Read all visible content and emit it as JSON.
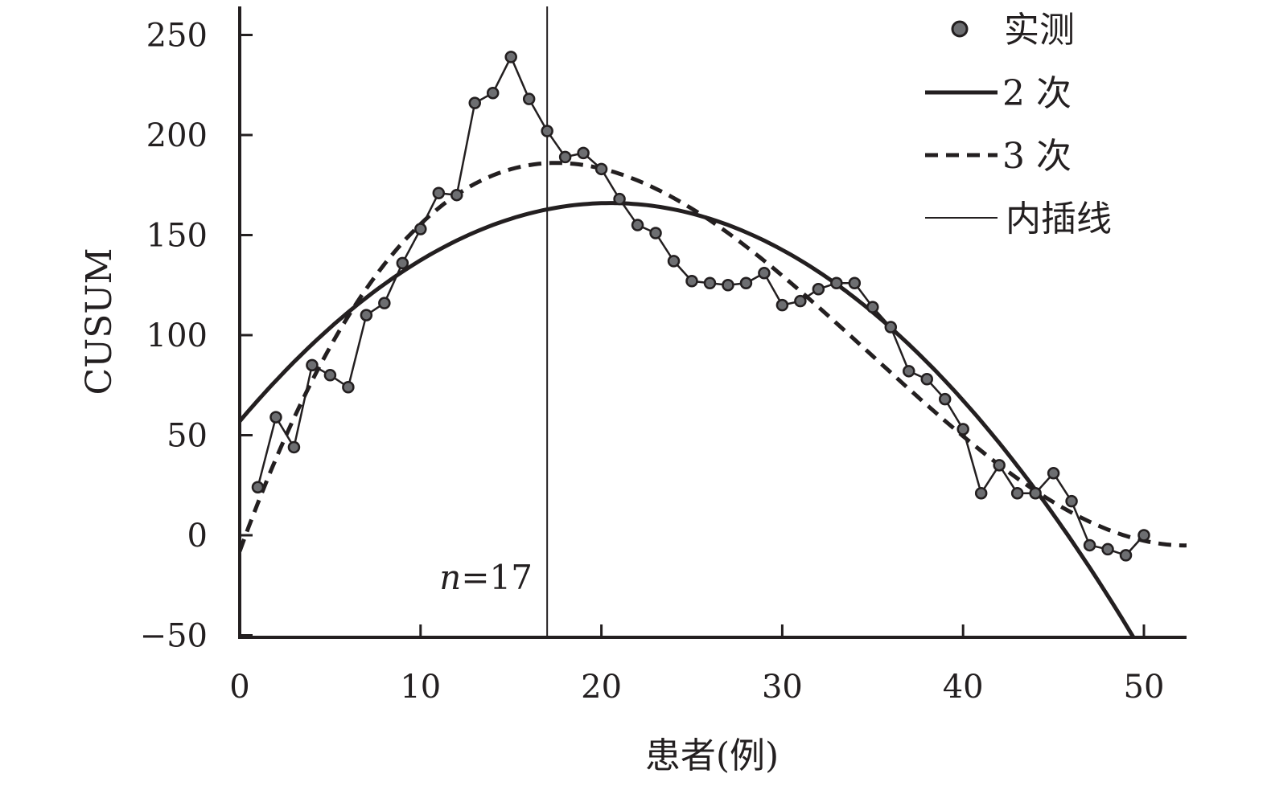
{
  "chart_data": {
    "type": "line",
    "title": "",
    "xlabel": "患者(例)",
    "ylabel": "CUSUM",
    "xlim": [
      0,
      52.5
    ],
    "ylim": [
      -50,
      265
    ],
    "xticks": [
      0,
      10,
      20,
      30,
      40,
      50
    ],
    "yticks": [
      -50,
      0,
      50,
      100,
      150,
      200,
      250
    ],
    "xtick_labels": [
      "0",
      "10",
      "20",
      "30",
      "40",
      "50"
    ],
    "ytick_labels": [
      "−50",
      "0",
      "50",
      "100",
      "150",
      "200",
      "250"
    ],
    "grid": false,
    "legend_position": "top-right",
    "legend": [
      "实测",
      "2 次",
      "3 次",
      "内插线"
    ],
    "series": [
      {
        "name": "实测",
        "style": "points-with-line",
        "x": [
          1,
          2,
          3,
          4,
          5,
          6,
          7,
          8,
          9,
          10,
          11,
          12,
          13,
          14,
          15,
          16,
          17,
          18,
          19,
          20,
          21,
          22,
          23,
          24,
          25,
          26,
          27,
          28,
          29,
          30,
          31,
          32,
          33,
          34,
          35,
          36,
          37,
          38,
          39,
          40,
          41,
          42,
          43,
          44,
          45,
          46,
          47,
          48,
          49,
          50
        ],
        "y": [
          24,
          59,
          44,
          85,
          80,
          74,
          110,
          116,
          136,
          153,
          171,
          170,
          216,
          221,
          239,
          218,
          202,
          189,
          191,
          183,
          168,
          155,
          151,
          137,
          127,
          126,
          125,
          126,
          131,
          115,
          117,
          123,
          126,
          126,
          114,
          104,
          82,
          78,
          68,
          53,
          21,
          35,
          21,
          21,
          31,
          17,
          -5,
          -7,
          -10,
          0
        ]
      },
      {
        "name": "2 次",
        "style": "solid-thick",
        "fit": "quadratic",
        "coefficients": [
          -0.2594,
          10.635,
          57
        ],
        "x_range": [
          0,
          49.5
        ]
      },
      {
        "name": "3 次",
        "style": "dashed",
        "fit": "cubic",
        "coefficients": [
          0.009094,
          -0.9518,
          24.96,
          -8
        ],
        "x_range": [
          0,
          52.5
        ]
      }
    ],
    "annotations": [
      {
        "type": "vline",
        "x": 17,
        "name": "内插线",
        "label": "n=17",
        "label_italic": "n",
        "label_rest": "=17"
      }
    ]
  }
}
